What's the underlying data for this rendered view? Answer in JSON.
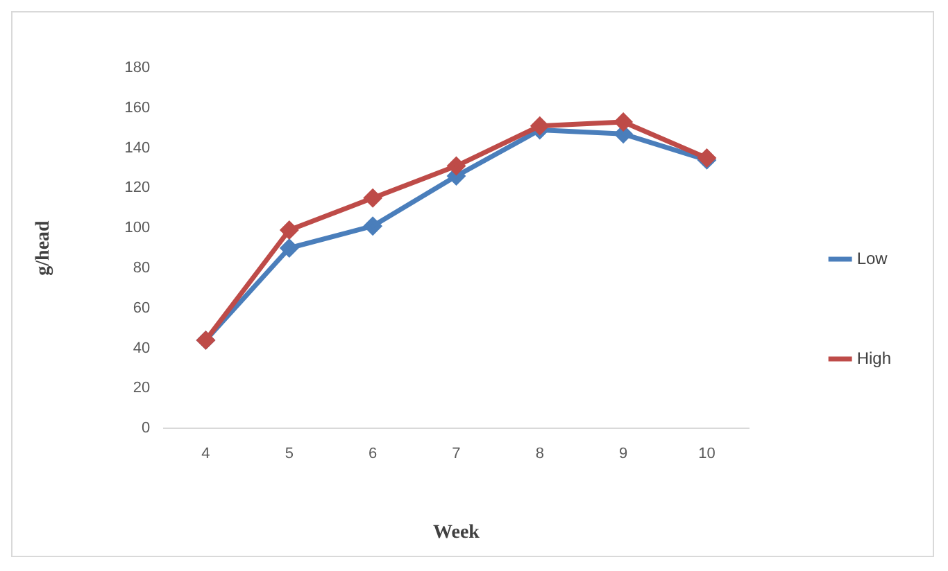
{
  "chart_data": {
    "type": "line",
    "xlabel": "Week",
    "ylabel": "g/head",
    "categories": [
      "4",
      "5",
      "6",
      "7",
      "8",
      "9",
      "10"
    ],
    "series": [
      {
        "name": "Low",
        "color": "#4a7ebb",
        "values": [
          44,
          90,
          101,
          126,
          149,
          147,
          134
        ]
      },
      {
        "name": "High",
        "color": "#be4b48",
        "values": [
          44,
          99,
          115,
          131,
          151,
          153,
          135
        ]
      }
    ],
    "ylim": [
      0,
      180
    ],
    "yticks": [
      0,
      20,
      40,
      60,
      80,
      100,
      120,
      140,
      160,
      180
    ],
    "grid": false,
    "legend": "right",
    "marker": "diamond",
    "line_style": "solid"
  }
}
